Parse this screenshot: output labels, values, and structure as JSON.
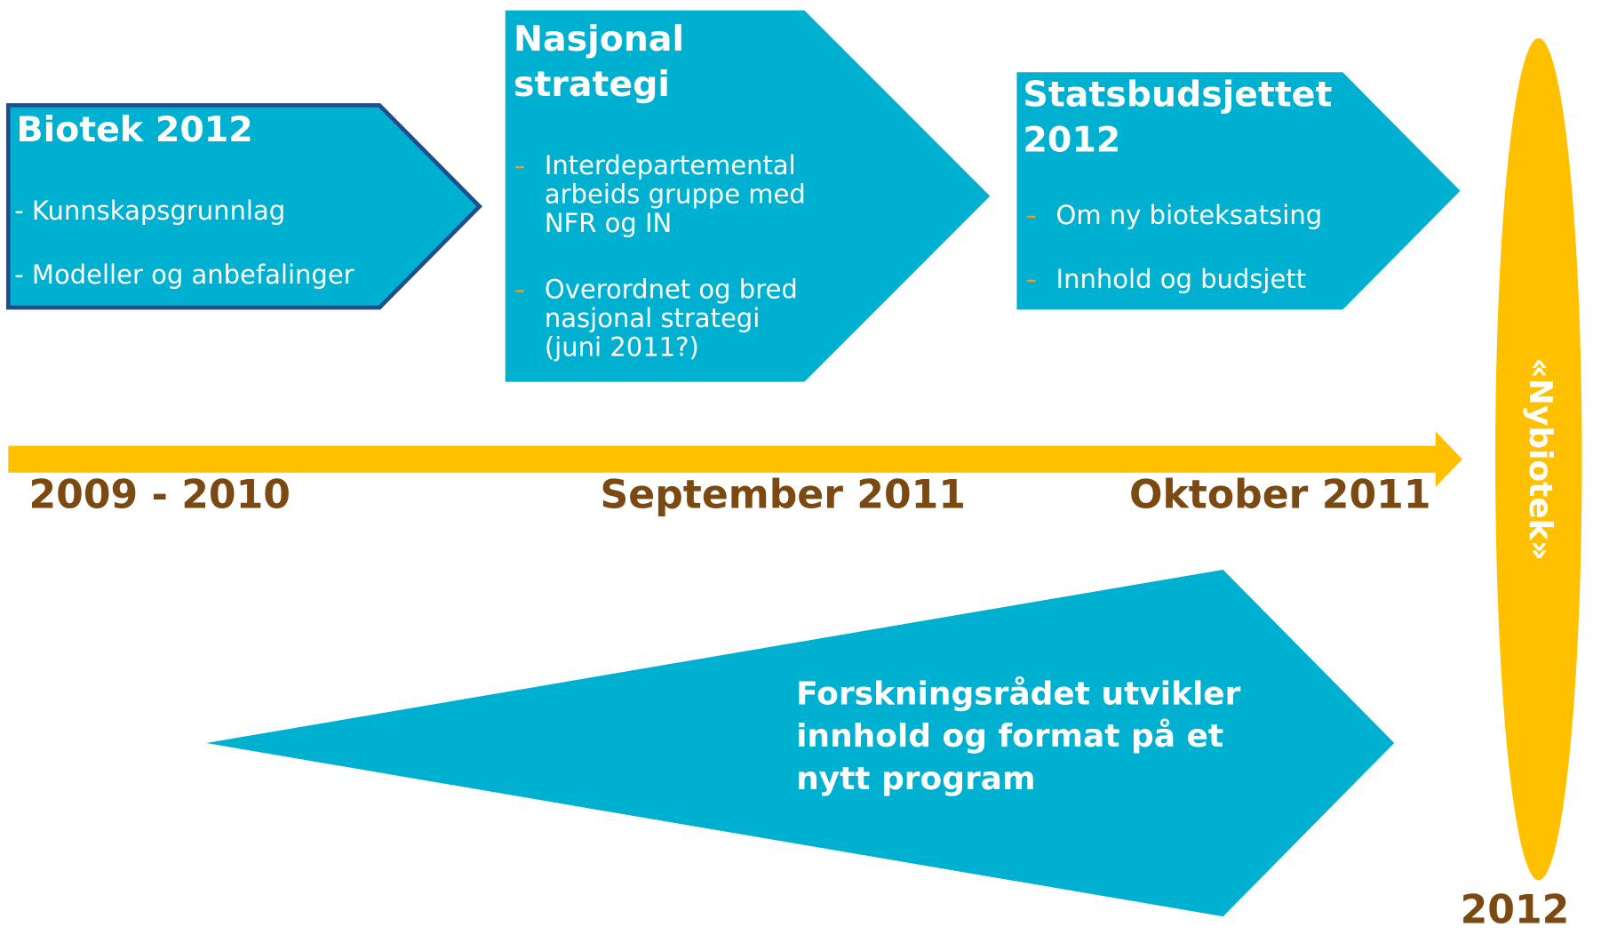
{
  "boxes": [
    {
      "title_lines": [
        "Biotek 2012"
      ],
      "items": [
        [
          "- Kunnskapsgrunnlag"
        ],
        [
          "- Modeller og anbefalinger"
        ]
      ]
    },
    {
      "title_lines": [
        "Nasjonal",
        "strategi"
      ],
      "items": [
        [
          "Interdepartemental",
          "arbeids gruppe med",
          "NFR og IN"
        ],
        [
          "Overordnet og bred",
          "nasjonal strategi",
          "(juni 2011?)"
        ]
      ]
    },
    {
      "title_lines": [
        "Statsbudsjettet",
        "2012"
      ],
      "items": [
        [
          "Om ny bioteksatsing"
        ],
        [
          "Innhold og budsjett"
        ]
      ]
    }
  ],
  "timeline_labels": [
    "2009 - 2010",
    "September 2011",
    "Oktober 2011"
  ],
  "program_lines": [
    "Forskningsrådet utvikler",
    "innhold og format på et",
    "nytt program"
  ],
  "milestone": "«Nybiotek»",
  "year": "2012"
}
